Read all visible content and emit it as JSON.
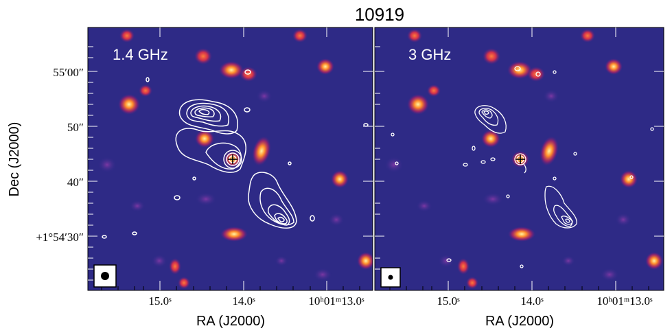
{
  "figure": {
    "title": "10919",
    "xlabel": "RA (J2000)",
    "ylabel": "Dec (J2000)",
    "colormap": "blue-purple background with orange/yellow sources",
    "contour_color": "#ffffff",
    "marker": "cross",
    "panels": [
      {
        "label": "1.4 GHz",
        "beam": "large round beam",
        "ra_ticks": [
          "15.0ˢ",
          "14.0ˢ",
          "10ʰ01ᵐ13.0ˢ"
        ],
        "dec_ticks": [
          "55′00″",
          "50″",
          "40″",
          "+1°54′30″"
        ]
      },
      {
        "label": "3 GHz",
        "beam": "small round beam",
        "ra_ticks": [
          "15.0ˢ",
          "14.0ˢ",
          "10ʰ01ᵐ13.0ˢ"
        ],
        "dec_ticks": []
      }
    ]
  }
}
